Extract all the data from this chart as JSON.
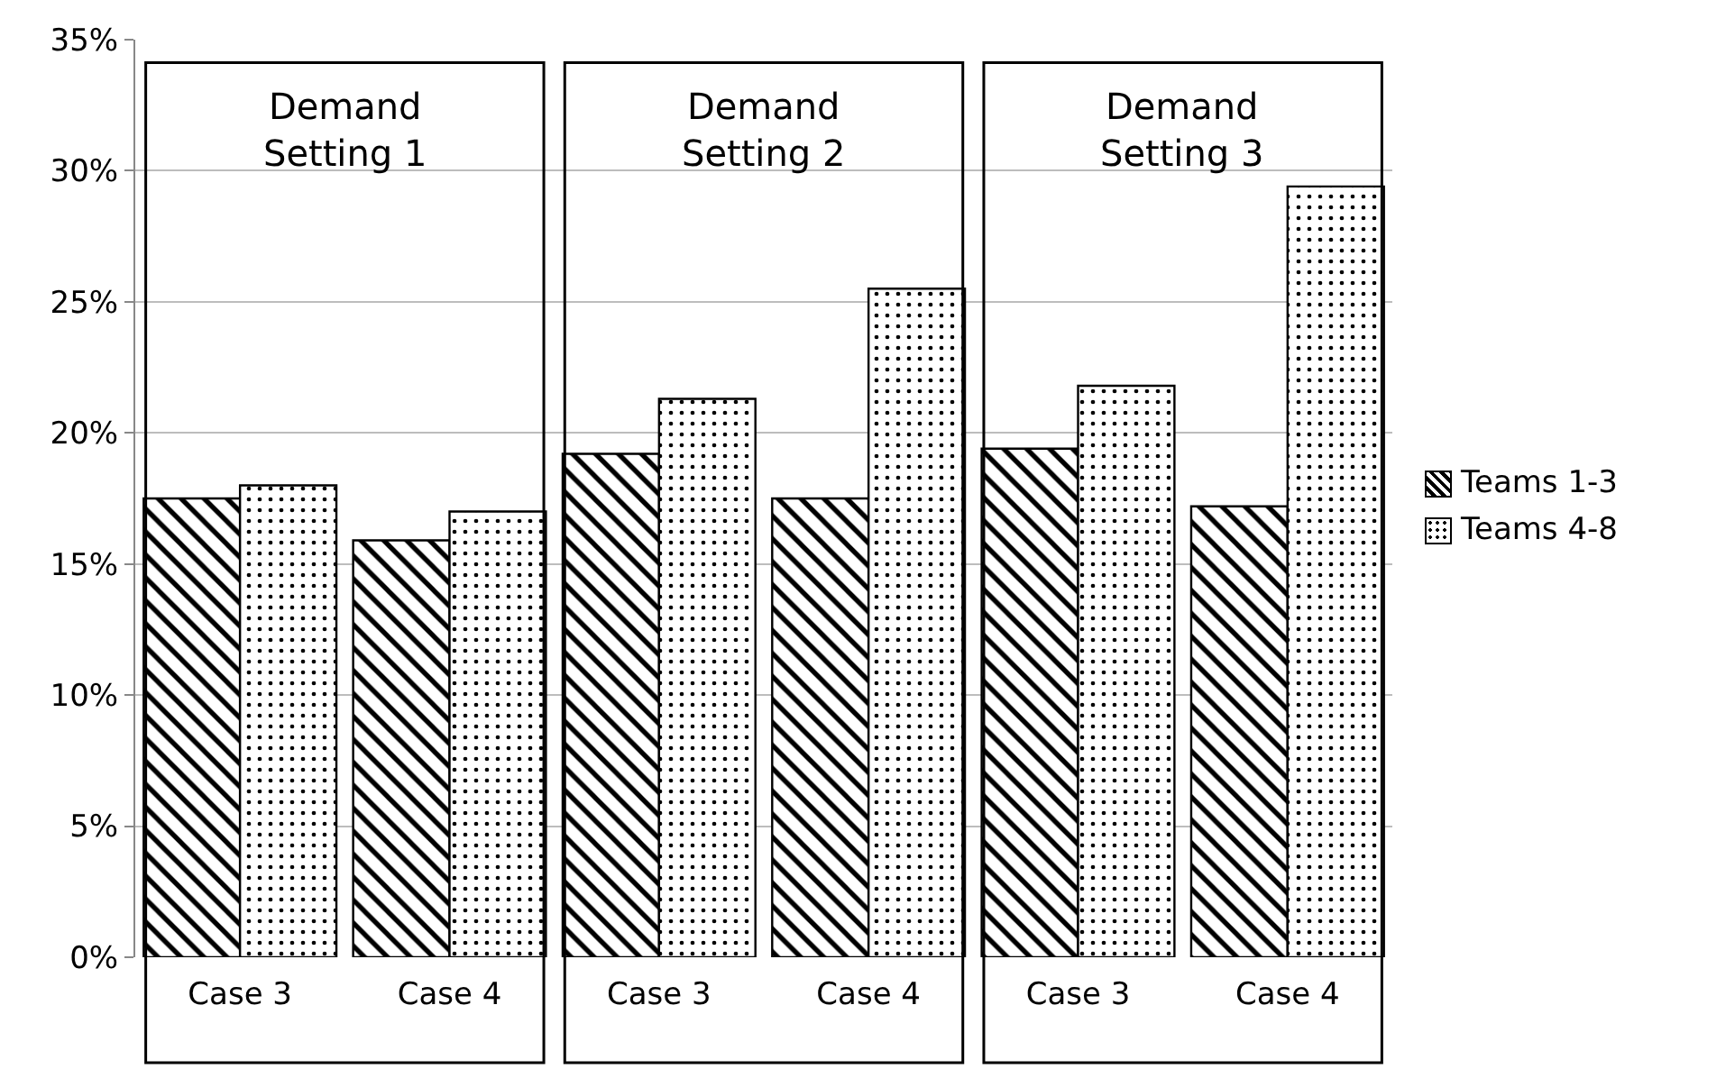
{
  "chart_data": {
    "type": "bar",
    "categories": [
      "Case 3",
      "Case 4",
      "Case 3",
      "Case 4",
      "Case 3",
      "Case 4"
    ],
    "series": [
      {
        "name": "Teams 1-3",
        "color": "#000000",
        "values": [
          0.175,
          0.159,
          0.192,
          0.175,
          0.194,
          0.172
        ]
      },
      {
        "name": "Teams 4-8",
        "color": "#000000",
        "values": [
          0.18,
          0.17,
          0.213,
          0.255,
          0.218,
          0.294
        ]
      }
    ],
    "ylim": [
      0,
      0.35
    ],
    "yticks": [
      {
        "value": 0,
        "label": "0%"
      },
      {
        "value": 0.05,
        "label": "5%"
      },
      {
        "value": 0.1,
        "label": "10%"
      },
      {
        "value": 0.15,
        "label": "15%"
      },
      {
        "value": 0.2,
        "label": "20%"
      },
      {
        "value": 0.25,
        "label": "25%"
      },
      {
        "value": 0.3,
        "label": "30%"
      },
      {
        "value": 0.35,
        "label": "35%"
      }
    ],
    "annotations": [
      "Demand Setting 1",
      "Demand Setting 2",
      "Demand Setting 3"
    ],
    "grid": "y",
    "legend": "right"
  }
}
